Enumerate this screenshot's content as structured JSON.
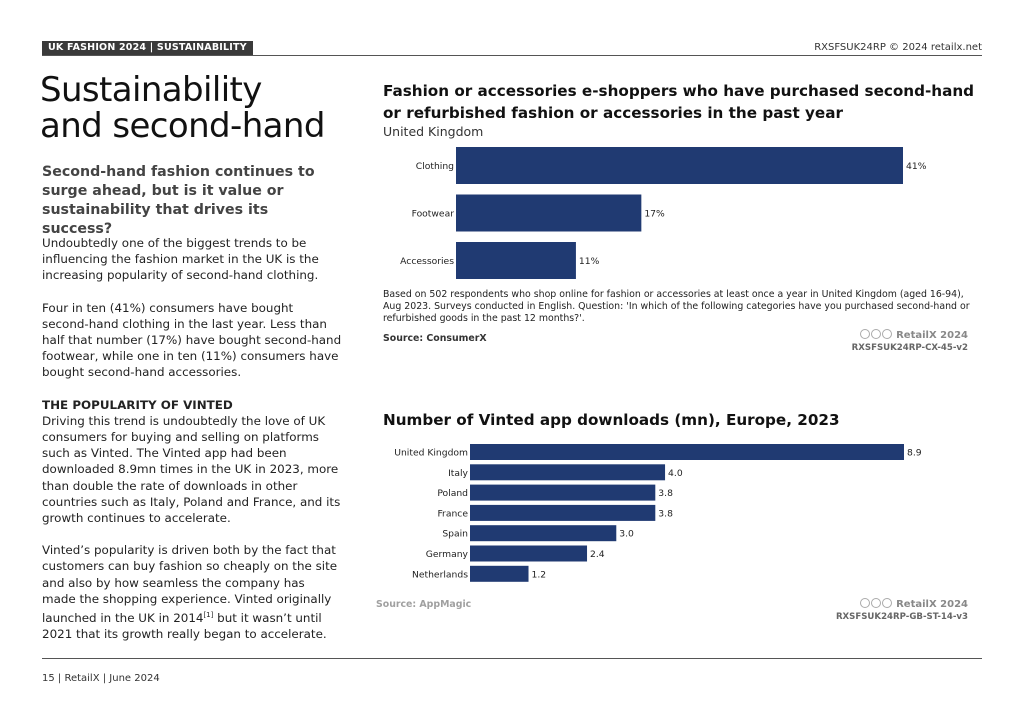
{
  "header": {
    "tag": "UK FASHION 2024 | SUSTAINABILITY",
    "right": "RXSFSUK24RP © 2024 retailx.net"
  },
  "article": {
    "title_line1": "Sustainability",
    "title_line2": "and second-hand",
    "subtitle": "Second-hand fashion continues to surge ahead, but is it value or sustainability that drives its success?",
    "para1": "Undoubtedly one of the biggest trends to be influencing the fashion market in the UK is the increasing popularity of second-hand clothing.",
    "para2": "Four in ten (41%) consumers have bought second-hand clothing in the last year. Less than half that number (17%) have bought second-hand footwear, while one in ten (11%) consumers have bought second-hand accessories.",
    "section_head": "THE POPULARITY OF VINTED",
    "para3": "Driving this trend is undoubtedly the love of UK consumers for buying and selling on platforms such as Vinted. The Vinted app had been downloaded 8.9mn times in the UK in 2023, more than double the rate of downloads in other countries such as Italy, Poland and France, and its growth continues to accelerate.",
    "para4_a": "Vinted’s popularity is driven both by the fact that customers can buy fashion so cheaply on the site and also by how seamless the company has made the shopping experience. Vinted originally launched in the UK in 2014",
    "para4_sup": "[1]",
    "para4_b": " but it wasn’t until 2021 that its growth really began to accelerate."
  },
  "chart1_meta": {
    "note": "Based on 502 respondents who shop online for fashion or accessories at least once a year in United Kingdom (aged 16-94), Aug 2023. Surveys conducted in English. Question: 'In which of the following categories have you purchased second-hand or refurbished goods in the past 12 months?'.",
    "source": "Source: ConsumerX",
    "brand": "RetailX 2024",
    "code": "RXSFSUK24RP-CX-45-v2"
  },
  "chart2_meta": {
    "source": "Source: AppMagic",
    "brand": "RetailX 2024",
    "code": "RXSFSUK24RP-GB-ST-14-v3"
  },
  "chart_data": [
    {
      "type": "bar",
      "orientation": "horizontal",
      "title": "Fashion or accessories e-shoppers who have purchased second-hand or refurbished fashion or accessories in the past year",
      "subtitle": "United Kingdom",
      "categories": [
        "Clothing",
        "Footwear",
        "Accessories"
      ],
      "values": [
        41,
        17,
        11
      ],
      "value_labels": [
        "41%",
        "17%",
        "11%"
      ],
      "unit": "%",
      "xlim": [
        0,
        41
      ],
      "grid": false,
      "bar_color": "#203a72"
    },
    {
      "type": "bar",
      "orientation": "horizontal",
      "title": "Number of Vinted app downloads (mn), Europe, 2023",
      "categories": [
        "United Kingdom",
        "Italy",
        "Poland",
        "France",
        "Spain",
        "Germany",
        "Netherlands"
      ],
      "values": [
        8.9,
        4.0,
        3.8,
        3.8,
        3.0,
        2.4,
        1.2
      ],
      "value_labels": [
        "8.9",
        "4.0",
        "3.8",
        "3.8",
        "3.0",
        "2.4",
        "1.2"
      ],
      "xlim": [
        0,
        8.9
      ],
      "grid": false,
      "bar_color": "#203a72"
    }
  ],
  "footer": {
    "text": "15 | RetailX | June 2024"
  }
}
